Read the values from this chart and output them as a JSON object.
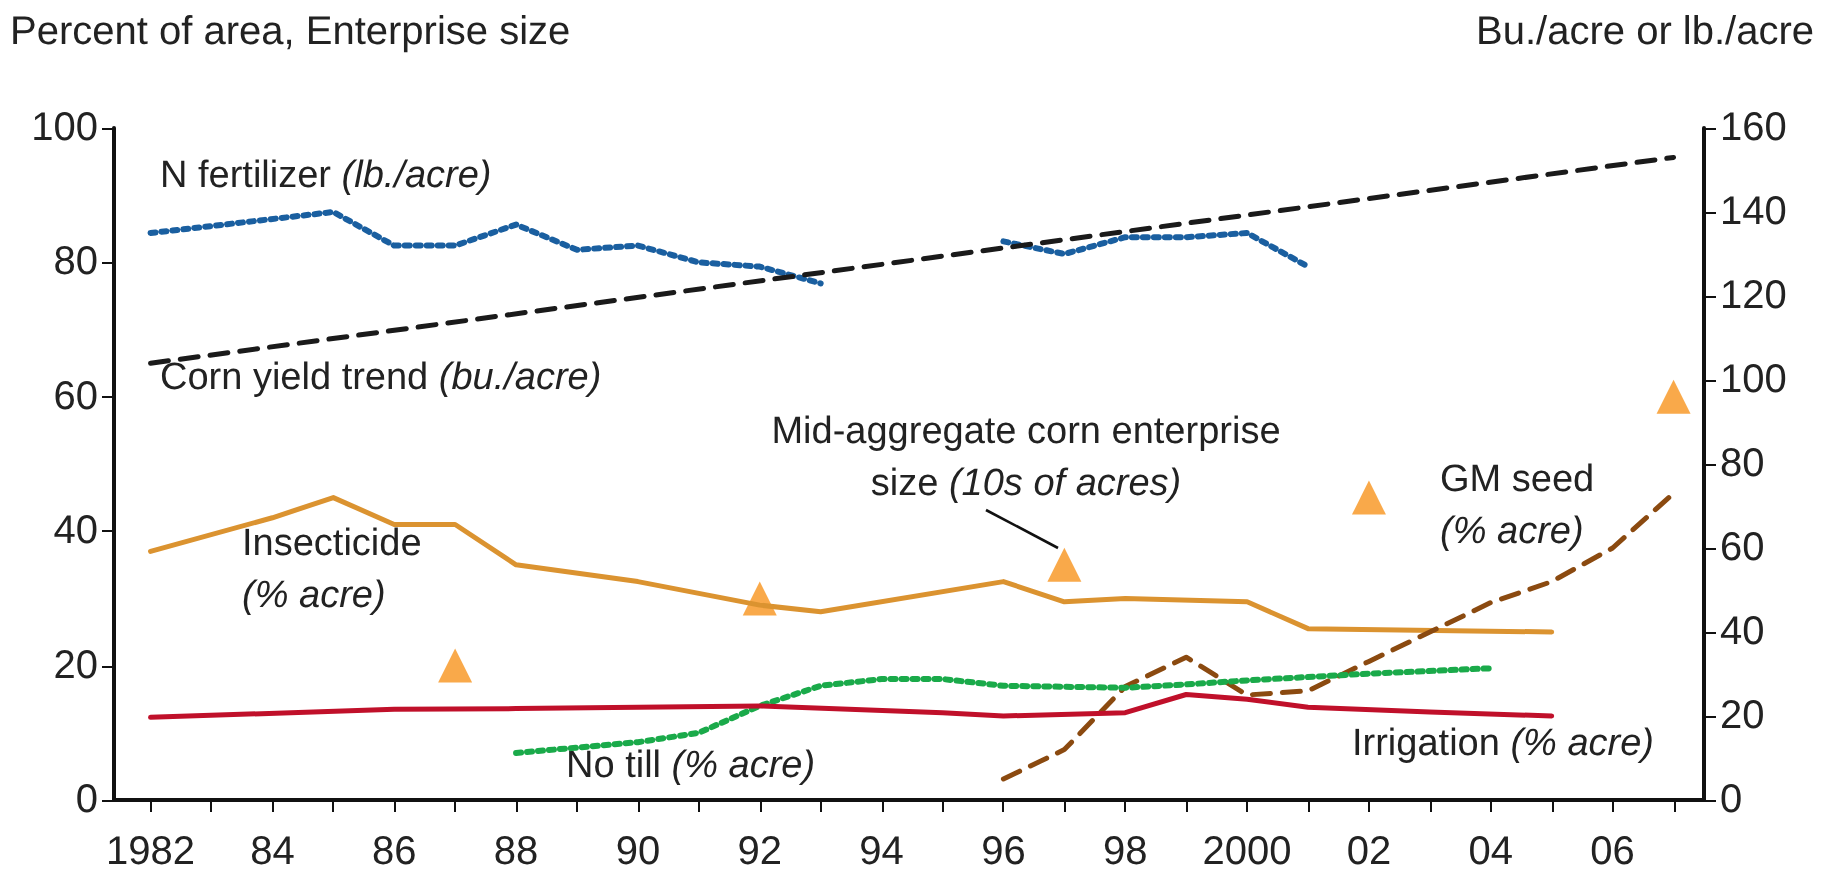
{
  "chart_data": {
    "type": "line",
    "ylabel": "Percent of area, Enterprise size",
    "y2label": "Bu./acre or lb./acre",
    "xlim": [
      1981.4,
      2007.5
    ],
    "xticks": [
      {
        "value": 1982,
        "label": "1982"
      },
      {
        "value": 1983,
        "label": null
      },
      {
        "value": 1984,
        "label": "84"
      },
      {
        "value": 1985,
        "label": null
      },
      {
        "value": 1986,
        "label": "86"
      },
      {
        "value": 1987,
        "label": null
      },
      {
        "value": 1988,
        "label": "88"
      },
      {
        "value": 1989,
        "label": null
      },
      {
        "value": 1990,
        "label": "90"
      },
      {
        "value": 1991,
        "label": null
      },
      {
        "value": 1992,
        "label": "92"
      },
      {
        "value": 1993,
        "label": null
      },
      {
        "value": 1994,
        "label": "94"
      },
      {
        "value": 1995,
        "label": null
      },
      {
        "value": 1996,
        "label": "96"
      },
      {
        "value": 1997,
        "label": null
      },
      {
        "value": 1998,
        "label": "98"
      },
      {
        "value": 1999,
        "label": null
      },
      {
        "value": 2000,
        "label": "2000"
      },
      {
        "value": 2001,
        "label": null
      },
      {
        "value": 2002,
        "label": "02"
      },
      {
        "value": 2003,
        "label": null
      },
      {
        "value": 2004,
        "label": "04"
      },
      {
        "value": 2005,
        "label": null
      },
      {
        "value": 2006,
        "label": "06"
      },
      {
        "value": 2007,
        "label": null
      }
    ],
    "ylim": [
      0,
      100
    ],
    "yticks": [
      0,
      20,
      40,
      60,
      80,
      100
    ],
    "y2lim": [
      0,
      160
    ],
    "y2ticks": [
      0,
      20,
      40,
      60,
      80,
      100,
      120,
      140,
      160
    ],
    "grid": false,
    "legend": false,
    "series": [
      {
        "name": "N fertilizer (lb./acre)",
        "axis": "y2",
        "color": "#1a5fa0",
        "line_style": "dotted",
        "x": [
          1982,
          1985,
          1986,
          1987,
          1988,
          1989,
          1990,
          1991,
          1992,
          1993,
          1994,
          1996,
          1997,
          1998,
          1999,
          2000,
          2001
        ],
        "values": [
          135,
          140,
          132,
          132,
          137,
          131,
          132,
          128,
          127,
          123,
          null,
          133,
          130,
          134,
          134,
          135,
          127
        ]
      },
      {
        "name": "Corn yield trend (bu./acre)",
        "axis": "y2",
        "color": "#1a1a1a",
        "line_style": "dashed",
        "x": [
          1982,
          2007
        ],
        "values": [
          104,
          153
        ]
      },
      {
        "name": "Insecticide\n(% acre)",
        "color": "#db9330",
        "line_style": "solid",
        "x": [
          1982,
          1984,
          1985,
          1986,
          1987,
          1988,
          1990,
          1992,
          1993,
          1996,
          1997,
          1998,
          2000,
          2001,
          2005
        ],
        "values": [
          37,
          42,
          45,
          41,
          41,
          35,
          32.5,
          29,
          28,
          32.5,
          29.5,
          30,
          29.5,
          25.5,
          25
        ]
      },
      {
        "name": "Mid-aggregate corn enterprise\nsize (10s of acres)",
        "type": "scatter",
        "marker": "triangle",
        "color": "#f7941d",
        "x": [
          1987,
          1992,
          1997,
          2002,
          2007
        ],
        "values": [
          20,
          30,
          35,
          45,
          60
        ]
      },
      {
        "name": "GM seed\n(% acre)",
        "axis": "y2",
        "color": "#8b4a10",
        "line_style": "dashed",
        "x": [
          1996,
          1997,
          1998,
          1999,
          2000,
          2001,
          2002,
          2003,
          2004,
          2005,
          2006,
          2007
        ],
        "values": [
          5,
          12,
          27,
          34,
          25,
          26,
          33,
          40,
          47,
          52,
          60,
          73
        ]
      },
      {
        "name": "No till (% acre)",
        "color": "#1aaa4a",
        "line_style": "dotted",
        "x": [
          1988,
          1990,
          1991,
          1992,
          1993,
          1994,
          1995,
          1996,
          1998,
          1999,
          2000,
          2001,
          2002,
          2004
        ],
        "values": [
          7,
          8.6,
          10,
          14,
          17,
          18,
          18,
          17,
          16.7,
          17.2,
          17.8,
          18.3,
          18.8,
          19.6
        ]
      },
      {
        "name": "Irrigation (% acre)",
        "color": "#c0102a",
        "line_style": "solid",
        "x": [
          1982,
          1986,
          1988,
          1992,
          1995,
          1996,
          1998,
          1999,
          2000,
          2001,
          2003,
          2005
        ],
        "values": [
          12.3,
          13.5,
          13.6,
          14,
          13,
          12.5,
          13,
          15.7,
          15,
          13.8,
          13.1,
          12.5
        ]
      }
    ]
  }
}
